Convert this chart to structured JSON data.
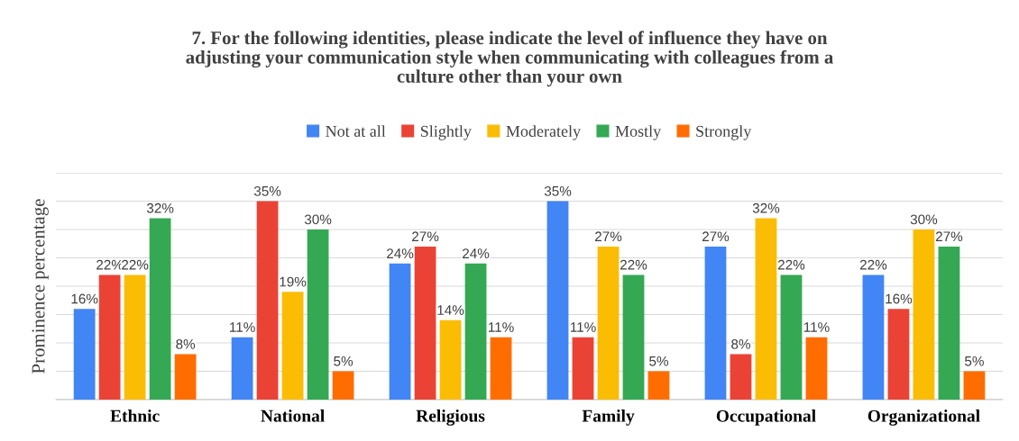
{
  "chart_data": {
    "type": "bar",
    "title": "7. For the following identities, please indicate the level of influence they have on\nadjusting your communication style when communicating with colleagues from a\nculture other than your own",
    "ylabel": "Prominence percentage",
    "categories": [
      "Ethnic",
      "National",
      "Religious",
      "Family",
      "Occupational",
      "Organizational"
    ],
    "series": [
      {
        "name": "Not at all",
        "color": "#4285f4",
        "values": [
          16,
          11,
          24,
          35,
          27,
          22
        ],
        "value_labels": [
          "16%",
          "11%",
          "24%",
          "35%",
          "27%",
          "22%"
        ]
      },
      {
        "name": "Slightly",
        "color": "#ea4335",
        "values": [
          22,
          35,
          27,
          11,
          8,
          16
        ],
        "value_labels": [
          "22%",
          "35%",
          "27%",
          "11%",
          "8%",
          "16%"
        ]
      },
      {
        "name": "Moderately",
        "color": "#fbbc04",
        "values": [
          22,
          19,
          14,
          27,
          32,
          30
        ],
        "value_labels": [
          "22%",
          "19%",
          "14%",
          "27%",
          "32%",
          "30%"
        ]
      },
      {
        "name": "Mostly",
        "color": "#34a853",
        "values": [
          32,
          30,
          24,
          22,
          22,
          27
        ],
        "value_labels": [
          "32%",
          "30%",
          "24%",
          "22%",
          "22%",
          "27%"
        ]
      },
      {
        "name": "Strongly",
        "color": "#ff6d01",
        "values": [
          8,
          5,
          11,
          5,
          11,
          5
        ],
        "value_labels": [
          "8%",
          "5%",
          "11%",
          "5%",
          "11%",
          "5%"
        ]
      }
    ],
    "ylim": [
      0,
      40
    ],
    "yticks": [
      {
        "value": 0,
        "label": null
      },
      {
        "value": 5,
        "label": null
      },
      {
        "value": 10,
        "label": null
      },
      {
        "value": 15,
        "label": null
      },
      {
        "value": 20,
        "label": null
      },
      {
        "value": 25,
        "label": null
      },
      {
        "value": 30,
        "label": null
      },
      {
        "value": 35,
        "label": null
      },
      {
        "value": 40,
        "label": null
      }
    ],
    "tick_labels": "x",
    "grid": "y",
    "legend": "top"
  }
}
